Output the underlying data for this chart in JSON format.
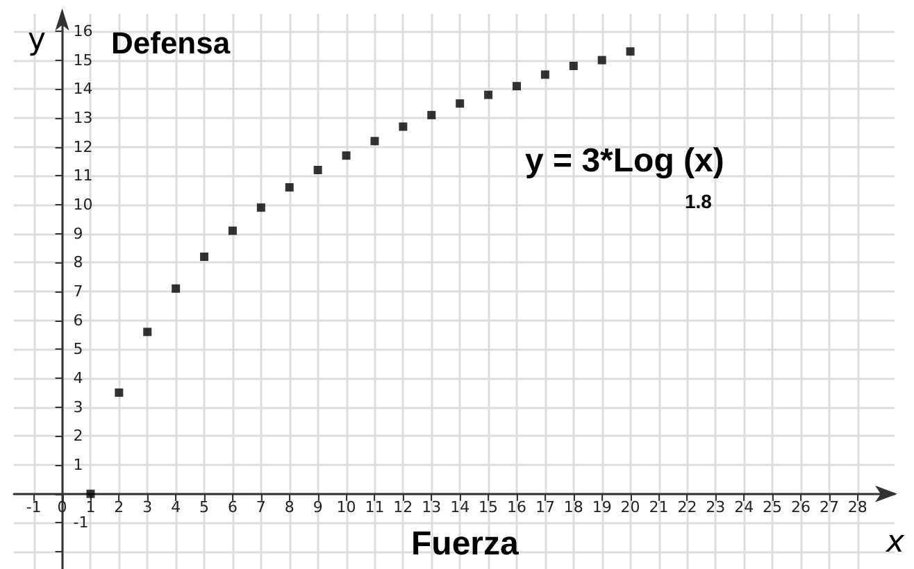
{
  "chart_data": {
    "type": "scatter",
    "title": "Defensa",
    "xlabel": "Fuerza",
    "ylabel": "y",
    "x2label": "x",
    "annotations": [
      "y = 3*Log (x)",
      "1.8"
    ],
    "x": [
      1,
      2,
      3,
      4,
      5,
      6,
      7,
      8,
      9,
      10,
      11,
      12,
      13,
      14,
      15,
      16,
      17,
      18,
      19,
      20
    ],
    "series": [
      {
        "color": "#000000",
        "values": [
          0,
          3.5,
          5.6,
          7.1,
          8.2,
          9.1,
          9.9,
          10.6,
          11.2,
          11.7,
          12.2,
          12.7,
          13.1,
          13.5,
          13.8,
          14.1,
          14.5,
          14.8,
          15.0,
          15.3
        ]
      }
    ],
    "xlim": [
      -1.7,
      29.3
    ],
    "ylim": [
      -2.6,
      16.6
    ],
    "xticks": [
      -1,
      0,
      1,
      2,
      3,
      4,
      5,
      6,
      7,
      8,
      9,
      10,
      11,
      12,
      13,
      14,
      15,
      16,
      17,
      18,
      19,
      20,
      21,
      22,
      23,
      24,
      25,
      26,
      27,
      28
    ],
    "yticks": [
      {
        "value": -2,
        "label": null
      },
      -1,
      {
        "value": 0,
        "label": null
      },
      1,
      2,
      3,
      4,
      5,
      6,
      7,
      8,
      9,
      10,
      11,
      12,
      13,
      14,
      15,
      16
    ],
    "grid": true,
    "marker": "square"
  }
}
